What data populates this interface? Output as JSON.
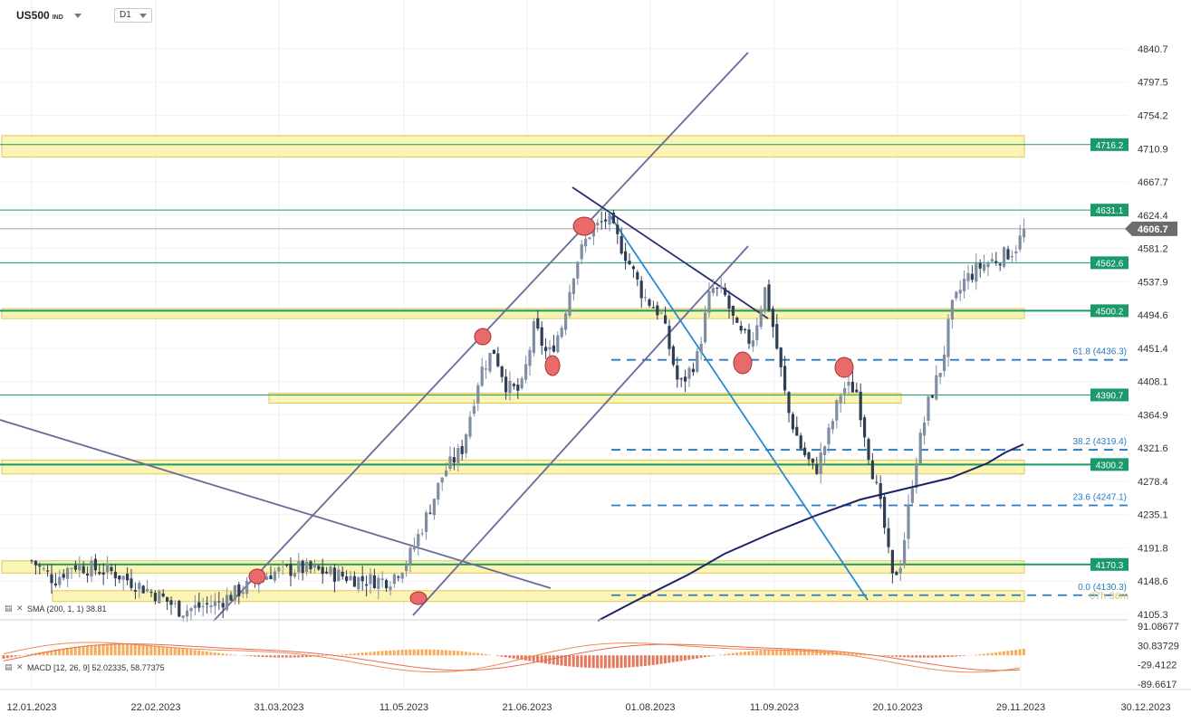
{
  "header": {
    "symbol": "US500",
    "symbol_type": "IND",
    "timeframe": "D1"
  },
  "indicators": {
    "sma_label": "SMA (200, 1, 1) 38.81",
    "macd_label": "MACD [12, 26, 9] 52.02335,  58.77375",
    "icon": "chart-type-icon",
    "close_icon": "close-icon"
  },
  "chart_data": {
    "type": "candlestick",
    "price_axis": {
      "ticks": [
        "4840.7",
        "4797.5",
        "4754.2",
        "4710.9",
        "4667.7",
        "4624.4",
        "4581.2",
        "4537.9",
        "4494.6",
        "4451.4",
        "4408.1",
        "4364.9",
        "4321.6",
        "4278.4",
        "4235.1",
        "4191.8",
        "4148.6",
        "4105.3"
      ],
      "range": [
        4105.3,
        4840.7
      ]
    },
    "macd_axis": {
      "ticks": [
        "91.08677",
        "30.83729",
        "-29.4122",
        "-89.6617"
      ],
      "range": [
        -89.6617,
        91.08677
      ]
    },
    "x_axis": {
      "ticks": [
        "12.01.2023",
        "22.02.2023",
        "31.03.2023",
        "11.05.2023",
        "21.06.2023",
        "01.08.2023",
        "11.09.2023",
        "20.10.2023",
        "29.11.2023",
        "30.12.2023"
      ]
    },
    "current_price": "4606.7",
    "levels": [
      {
        "label": "4716.2",
        "value": 4716.2,
        "zone": [
          4700,
          4728
        ],
        "zone_range": [
          "12.01.2023",
          "29.11.2023"
        ]
      },
      {
        "label": "4631.1",
        "value": 4631.1
      },
      {
        "label": "4562.6",
        "value": 4562.6
      },
      {
        "label": "4500.2",
        "value": 4500.2,
        "zone": [
          4490,
          4503
        ],
        "zone_range": [
          "12.01.2023",
          "29.11.2023"
        ]
      },
      {
        "label": "4390.7",
        "value": 4390.7,
        "zone": [
          4380,
          4393
        ],
        "zone_range": [
          "31.03.2023",
          "20.10.2023"
        ]
      },
      {
        "label": "4300.2",
        "value": 4300.2,
        "zone": [
          4288,
          4306
        ],
        "zone_range": [
          "12.01.2023",
          "29.11.2023"
        ]
      },
      {
        "label": "4170.3",
        "value": 4170.3,
        "zone": [
          4159,
          4175
        ],
        "zone_range": [
          "12.01.2023",
          "29.11.2023"
        ]
      }
    ],
    "fibonacci": [
      {
        "label": "61.8 (4436.3)",
        "value": 4436.3
      },
      {
        "label": "38.2 (4319.4)",
        "value": 4319.4
      },
      {
        "label": "23.6 (4247.1)",
        "value": 4247.1
      },
      {
        "label": "0.0 (4130.3)",
        "value": 4130.3
      }
    ],
    "fib_extra_label": "07h 36m",
    "colors": {
      "bull": "#7f8ea3",
      "bear": "#2f3e55",
      "level_green": "#1a9a6a",
      "zone_fill": "#fbf3a8",
      "zone_border": "#d8c040",
      "fib": "#2a7bbf",
      "sma": "#1c2466",
      "macd_up": "#f5a44a",
      "macd_down": "#e06a4a",
      "macd_line": "#f08a52",
      "signal_line": "#e86a52",
      "trendline": "#6a6a9a",
      "downtrend": "#2a8ad0",
      "marker": "#e86a6a"
    }
  }
}
